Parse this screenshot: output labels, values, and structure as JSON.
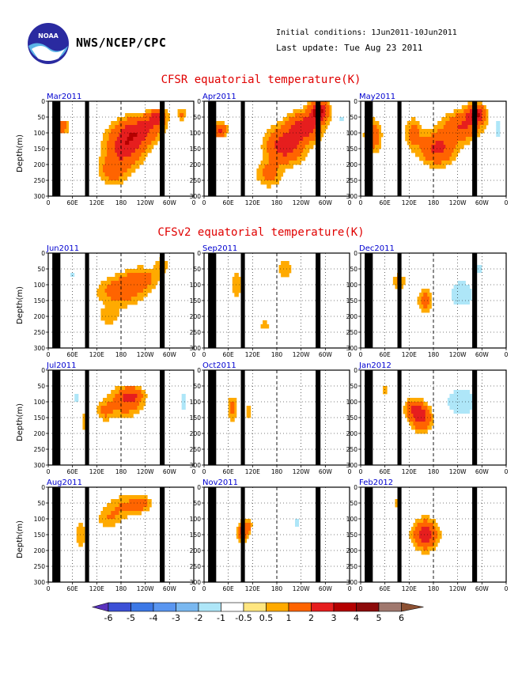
{
  "header": {
    "org": "NWS/NCEP/CPC",
    "init_conditions": "Initial conditions: 1Jun2011-10Jun2011",
    "last_update": "Last update: Tue Aug 23 2011",
    "logo_text": "NOAA"
  },
  "sections": {
    "cfsr_title": "CFSR equatorial temperature(K)",
    "cfsv2_title": "CFSv2 equatorial temperature(K)"
  },
  "colors": {
    "title": "#e00000",
    "panel_label": "#0000d0",
    "land": "#000000"
  },
  "chart_data": [
    {
      "type": "heatmap",
      "id": "cfsr",
      "title": "CFSR equatorial temperature(K)",
      "ylabel": "Depth(m)",
      "x_tick_labels": [
        "0",
        "60E",
        "120E",
        "180",
        "120W",
        "60W",
        "0"
      ],
      "y_tick_labels": [
        "0",
        "50",
        "100",
        "150",
        "200",
        "250",
        "300"
      ],
      "ylim": [
        300,
        0
      ],
      "panels": [
        {
          "label": "Mar2011",
          "features": [
            {
              "lon": 190,
              "depth": 140,
              "rx": 45,
              "rd": 60,
              "amp": 2.6
            },
            {
              "lon": 230,
              "depth": 90,
              "rx": 45,
              "rd": 45,
              "amp": 2.1
            },
            {
              "lon": 270,
              "depth": 50,
              "rx": 22,
              "rd": 30,
              "amp": 2.2
            },
            {
              "lon": 35,
              "depth": 80,
              "rx": 14,
              "rd": 20,
              "amp": 2.0
            },
            {
              "lon": 160,
              "depth": 220,
              "rx": 35,
              "rd": 45,
              "amp": 1.4
            },
            {
              "lon": 330,
              "depth": 40,
              "rx": 10,
              "rd": 20,
              "amp": 1.1
            },
            {
              "lon": 260,
              "depth": 15,
              "rx": 28,
              "rd": 14,
              "amp": -1.0
            }
          ]
        },
        {
          "label": "Apr2011",
          "features": [
            {
              "lon": 200,
              "depth": 140,
              "rx": 45,
              "rd": 55,
              "amp": 2.6
            },
            {
              "lon": 250,
              "depth": 80,
              "rx": 40,
              "rd": 45,
              "amp": 2.5
            },
            {
              "lon": 285,
              "depth": 30,
              "rx": 22,
              "rd": 30,
              "amp": 3.5
            },
            {
              "lon": 40,
              "depth": 90,
              "rx": 15,
              "rd": 22,
              "amp": 2.4
            },
            {
              "lon": 160,
              "depth": 230,
              "rx": 30,
              "rd": 40,
              "amp": 1.3
            },
            {
              "lon": 110,
              "depth": 90,
              "rx": 8,
              "rd": 25,
              "amp": -1.1
            },
            {
              "lon": 340,
              "depth": 60,
              "rx": 8,
              "rd": 25,
              "amp": -1.2
            }
          ]
        },
        {
          "label": "May2011",
          "features": [
            {
              "lon": 190,
              "depth": 150,
              "rx": 42,
              "rd": 50,
              "amp": 2.3
            },
            {
              "lon": 250,
              "depth": 80,
              "rx": 45,
              "rd": 45,
              "amp": 2.0
            },
            {
              "lon": 285,
              "depth": 40,
              "rx": 22,
              "rd": 30,
              "amp": 3.0
            },
            {
              "lon": 30,
              "depth": 110,
              "rx": 20,
              "rd": 50,
              "amp": 1.8
            },
            {
              "lon": 130,
              "depth": 100,
              "rx": 20,
              "rd": 45,
              "amp": 1.3
            },
            {
              "lon": 95,
              "depth": 110,
              "rx": 6,
              "rd": 20,
              "amp": -1.2
            },
            {
              "lon": 340,
              "depth": 90,
              "rx": 10,
              "rd": 40,
              "amp": -1.6
            }
          ]
        }
      ]
    },
    {
      "type": "heatmap",
      "id": "cfsv2",
      "title": "CFSv2 equatorial temperature(K)",
      "ylabel": "Depth(m)",
      "x_tick_labels": [
        "0",
        "60E",
        "120E",
        "180",
        "120W",
        "60W",
        "0"
      ],
      "y_tick_labels": [
        "0",
        "50",
        "100",
        "150",
        "200",
        "250",
        "300"
      ],
      "ylim": [
        300,
        0
      ],
      "panels": [
        {
          "label": "Jun2011",
          "features": [
            {
              "lon": 180,
              "depth": 120,
              "rx": 55,
              "rd": 45,
              "amp": 1.6
            },
            {
              "lon": 230,
              "depth": 80,
              "rx": 40,
              "rd": 35,
              "amp": 1.4
            },
            {
              "lon": 280,
              "depth": 40,
              "rx": 15,
              "rd": 25,
              "amp": 1.1
            },
            {
              "lon": 60,
              "depth": 70,
              "rx": 10,
              "rd": 25,
              "amp": -1.2
            },
            {
              "lon": 100,
              "depth": 90,
              "rx": 8,
              "rd": 20,
              "amp": -1.0
            },
            {
              "lon": 150,
              "depth": 200,
              "rx": 30,
              "rd": 30,
              "amp": 0.8
            },
            {
              "lon": 330,
              "depth": 130,
              "rx": 8,
              "rd": 30,
              "amp": -0.9
            }
          ]
        },
        {
          "label": "Sep2011",
          "features": [
            {
              "lon": 80,
              "depth": 100,
              "rx": 15,
              "rd": 55,
              "amp": 0.8
            },
            {
              "lon": 200,
              "depth": 50,
              "rx": 20,
              "rd": 40,
              "amp": 0.8
            },
            {
              "lon": 150,
              "depth": 230,
              "rx": 20,
              "rd": 30,
              "amp": 0.6
            },
            {
              "lon": 110,
              "depth": 200,
              "rx": 6,
              "rd": 40,
              "amp": -0.8
            },
            {
              "lon": 300,
              "depth": 80,
              "rx": 8,
              "rd": 30,
              "amp": -0.7
            }
          ]
        },
        {
          "label": "Dec2011",
          "features": [
            {
              "lon": 95,
              "depth": 90,
              "rx": 15,
              "rd": 25,
              "amp": 1.3
            },
            {
              "lon": 160,
              "depth": 150,
              "rx": 18,
              "rd": 35,
              "amp": 1.4
            },
            {
              "lon": 250,
              "depth": 130,
              "rx": 40,
              "rd": 55,
              "amp": -1.6
            },
            {
              "lon": 290,
              "depth": 50,
              "rx": 22,
              "rd": 30,
              "amp": -1.2
            },
            {
              "lon": 330,
              "depth": 200,
              "rx": 10,
              "rd": 40,
              "amp": -0.7
            }
          ]
        },
        {
          "label": "Jul2011",
          "features": [
            {
              "lon": 190,
              "depth": 100,
              "rx": 40,
              "rd": 45,
              "amp": 1.7
            },
            {
              "lon": 210,
              "depth": 80,
              "rx": 25,
              "rd": 25,
              "amp": 1.4
            },
            {
              "lon": 140,
              "depth": 130,
              "rx": 20,
              "rd": 30,
              "amp": 1.1
            },
            {
              "lon": 70,
              "depth": 90,
              "rx": 10,
              "rd": 25,
              "amp": -1.3
            },
            {
              "lon": 335,
              "depth": 100,
              "rx": 12,
              "rd": 35,
              "amp": -1.5
            },
            {
              "lon": 90,
              "depth": 160,
              "rx": 8,
              "rd": 40,
              "amp": 0.8
            }
          ]
        },
        {
          "label": "Oct2011",
          "features": [
            {
              "lon": 70,
              "depth": 120,
              "rx": 12,
              "rd": 40,
              "amp": 1.3
            },
            {
              "lon": 110,
              "depth": 130,
              "rx": 8,
              "rd": 30,
              "amp": 0.9
            },
            {
              "lon": 210,
              "depth": 150,
              "rx": 15,
              "rd": 40,
              "amp": -0.7
            },
            {
              "lon": 310,
              "depth": 200,
              "rx": 10,
              "rd": 40,
              "amp": -0.7
            }
          ]
        },
        {
          "label": "Jan2012",
          "features": [
            {
              "lon": 150,
              "depth": 150,
              "rx": 25,
              "rd": 40,
              "amp": 2.4
            },
            {
              "lon": 130,
              "depth": 120,
              "rx": 22,
              "rd": 30,
              "amp": 1.5
            },
            {
              "lon": 250,
              "depth": 100,
              "rx": 45,
              "rd": 50,
              "amp": -1.8
            },
            {
              "lon": 60,
              "depth": 60,
              "rx": 10,
              "rd": 20,
              "amp": 0.7
            },
            {
              "lon": 330,
              "depth": 200,
              "rx": 10,
              "rd": 40,
              "amp": -0.8
            }
          ]
        },
        {
          "label": "Aug2011",
          "features": [
            {
              "lon": 190,
              "depth": 60,
              "rx": 45,
              "rd": 35,
              "amp": 1.1
            },
            {
              "lon": 230,
              "depth": 50,
              "rx": 20,
              "rd": 20,
              "amp": 1.6
            },
            {
              "lon": 150,
              "depth": 100,
              "rx": 30,
              "rd": 30,
              "amp": 0.9
            },
            {
              "lon": 80,
              "depth": 150,
              "rx": 12,
              "rd": 50,
              "amp": 0.9
            },
            {
              "lon": 20,
              "depth": 50,
              "rx": 10,
              "rd": 20,
              "amp": -0.9
            },
            {
              "lon": 330,
              "depth": 140,
              "rx": 10,
              "rd": 40,
              "amp": -0.9
            }
          ]
        },
        {
          "label": "Nov2011",
          "features": [
            {
              "lon": 95,
              "depth": 140,
              "rx": 12,
              "rd": 30,
              "amp": 2.3
            },
            {
              "lon": 110,
              "depth": 120,
              "rx": 8,
              "rd": 20,
              "amp": 1.2
            },
            {
              "lon": 230,
              "depth": 110,
              "rx": 25,
              "rd": 35,
              "amp": -1.1
            },
            {
              "lon": 170,
              "depth": 140,
              "rx": 10,
              "rd": 25,
              "amp": -0.8
            },
            {
              "lon": 270,
              "depth": 40,
              "rx": 30,
              "rd": 15,
              "amp": -0.7
            }
          ]
        },
        {
          "label": "Feb2012",
          "features": [
            {
              "lon": 160,
              "depth": 150,
              "rx": 30,
              "rd": 45,
              "amp": 2.6
            },
            {
              "lon": 90,
              "depth": 50,
              "rx": 12,
              "rd": 20,
              "amp": 0.8
            },
            {
              "lon": 220,
              "depth": 60,
              "rx": 30,
              "rd": 25,
              "amp": -1.0
            },
            {
              "lon": 250,
              "depth": 120,
              "rx": 20,
              "rd": 30,
              "amp": -0.7
            }
          ]
        }
      ]
    }
  ],
  "colorbar": {
    "labels": [
      "-6",
      "-5",
      "-4",
      "-3",
      "-2",
      "-1",
      "-0.5",
      "0.5",
      "1",
      "2",
      "3",
      "4",
      "5",
      "6"
    ],
    "bounds": [
      -6,
      -5,
      -4,
      -3,
      -2,
      -1,
      -0.5,
      0.5,
      1,
      2,
      3,
      4,
      5,
      6
    ],
    "colors": [
      "#5a32bd",
      "#3c50d6",
      "#3c78e6",
      "#5a96f0",
      "#7ab8f0",
      "#aee6f8",
      "#ffffff",
      "#ffe680",
      "#ffaa00",
      "#ff6400",
      "#e61e1e",
      "#b40000",
      "#8c0a0a",
      "#a0786e",
      "#8c5032"
    ]
  }
}
